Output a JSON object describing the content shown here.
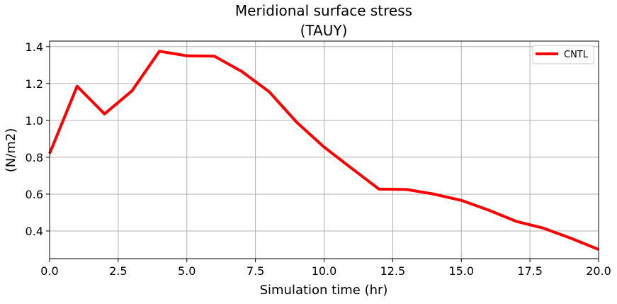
{
  "chart_data": {
    "type": "line",
    "title": [
      "Meridional surface stress",
      "(TAUY)"
    ],
    "xlabel": "Simulation time (hr)",
    "ylabel": "(N/m2)",
    "xlim": [
      0,
      20
    ],
    "ylim": [
      0.25,
      1.43
    ],
    "xticks": [
      0,
      2.5,
      5,
      7.5,
      10,
      12.5,
      15,
      17.5,
      20
    ],
    "xtick_labels": [
      "0.0",
      "2.5",
      "5.0",
      "7.5",
      "10.0",
      "12.5",
      "15.0",
      "17.5",
      "20.0"
    ],
    "yticks": [
      0.4,
      0.6,
      0.8,
      1.0,
      1.2,
      1.4
    ],
    "ytick_labels": [
      "0.4",
      "0.6",
      "0.8",
      "1.0",
      "1.2",
      "1.4"
    ],
    "grid": true,
    "legend_position": "top-right",
    "series": [
      {
        "name": "CNTL",
        "color": "#ff0000",
        "x": [
          0,
          1,
          2,
          3,
          4,
          5,
          6,
          7,
          8,
          9,
          10,
          11,
          12,
          13,
          14,
          15,
          16,
          17,
          18,
          19,
          20
        ],
        "y": [
          0.82,
          1.185,
          1.035,
          1.16,
          1.375,
          1.35,
          1.348,
          1.265,
          1.155,
          0.99,
          0.855,
          0.74,
          0.627,
          0.625,
          0.6,
          0.566,
          0.513,
          0.452,
          0.415,
          0.36,
          0.3
        ]
      }
    ]
  }
}
